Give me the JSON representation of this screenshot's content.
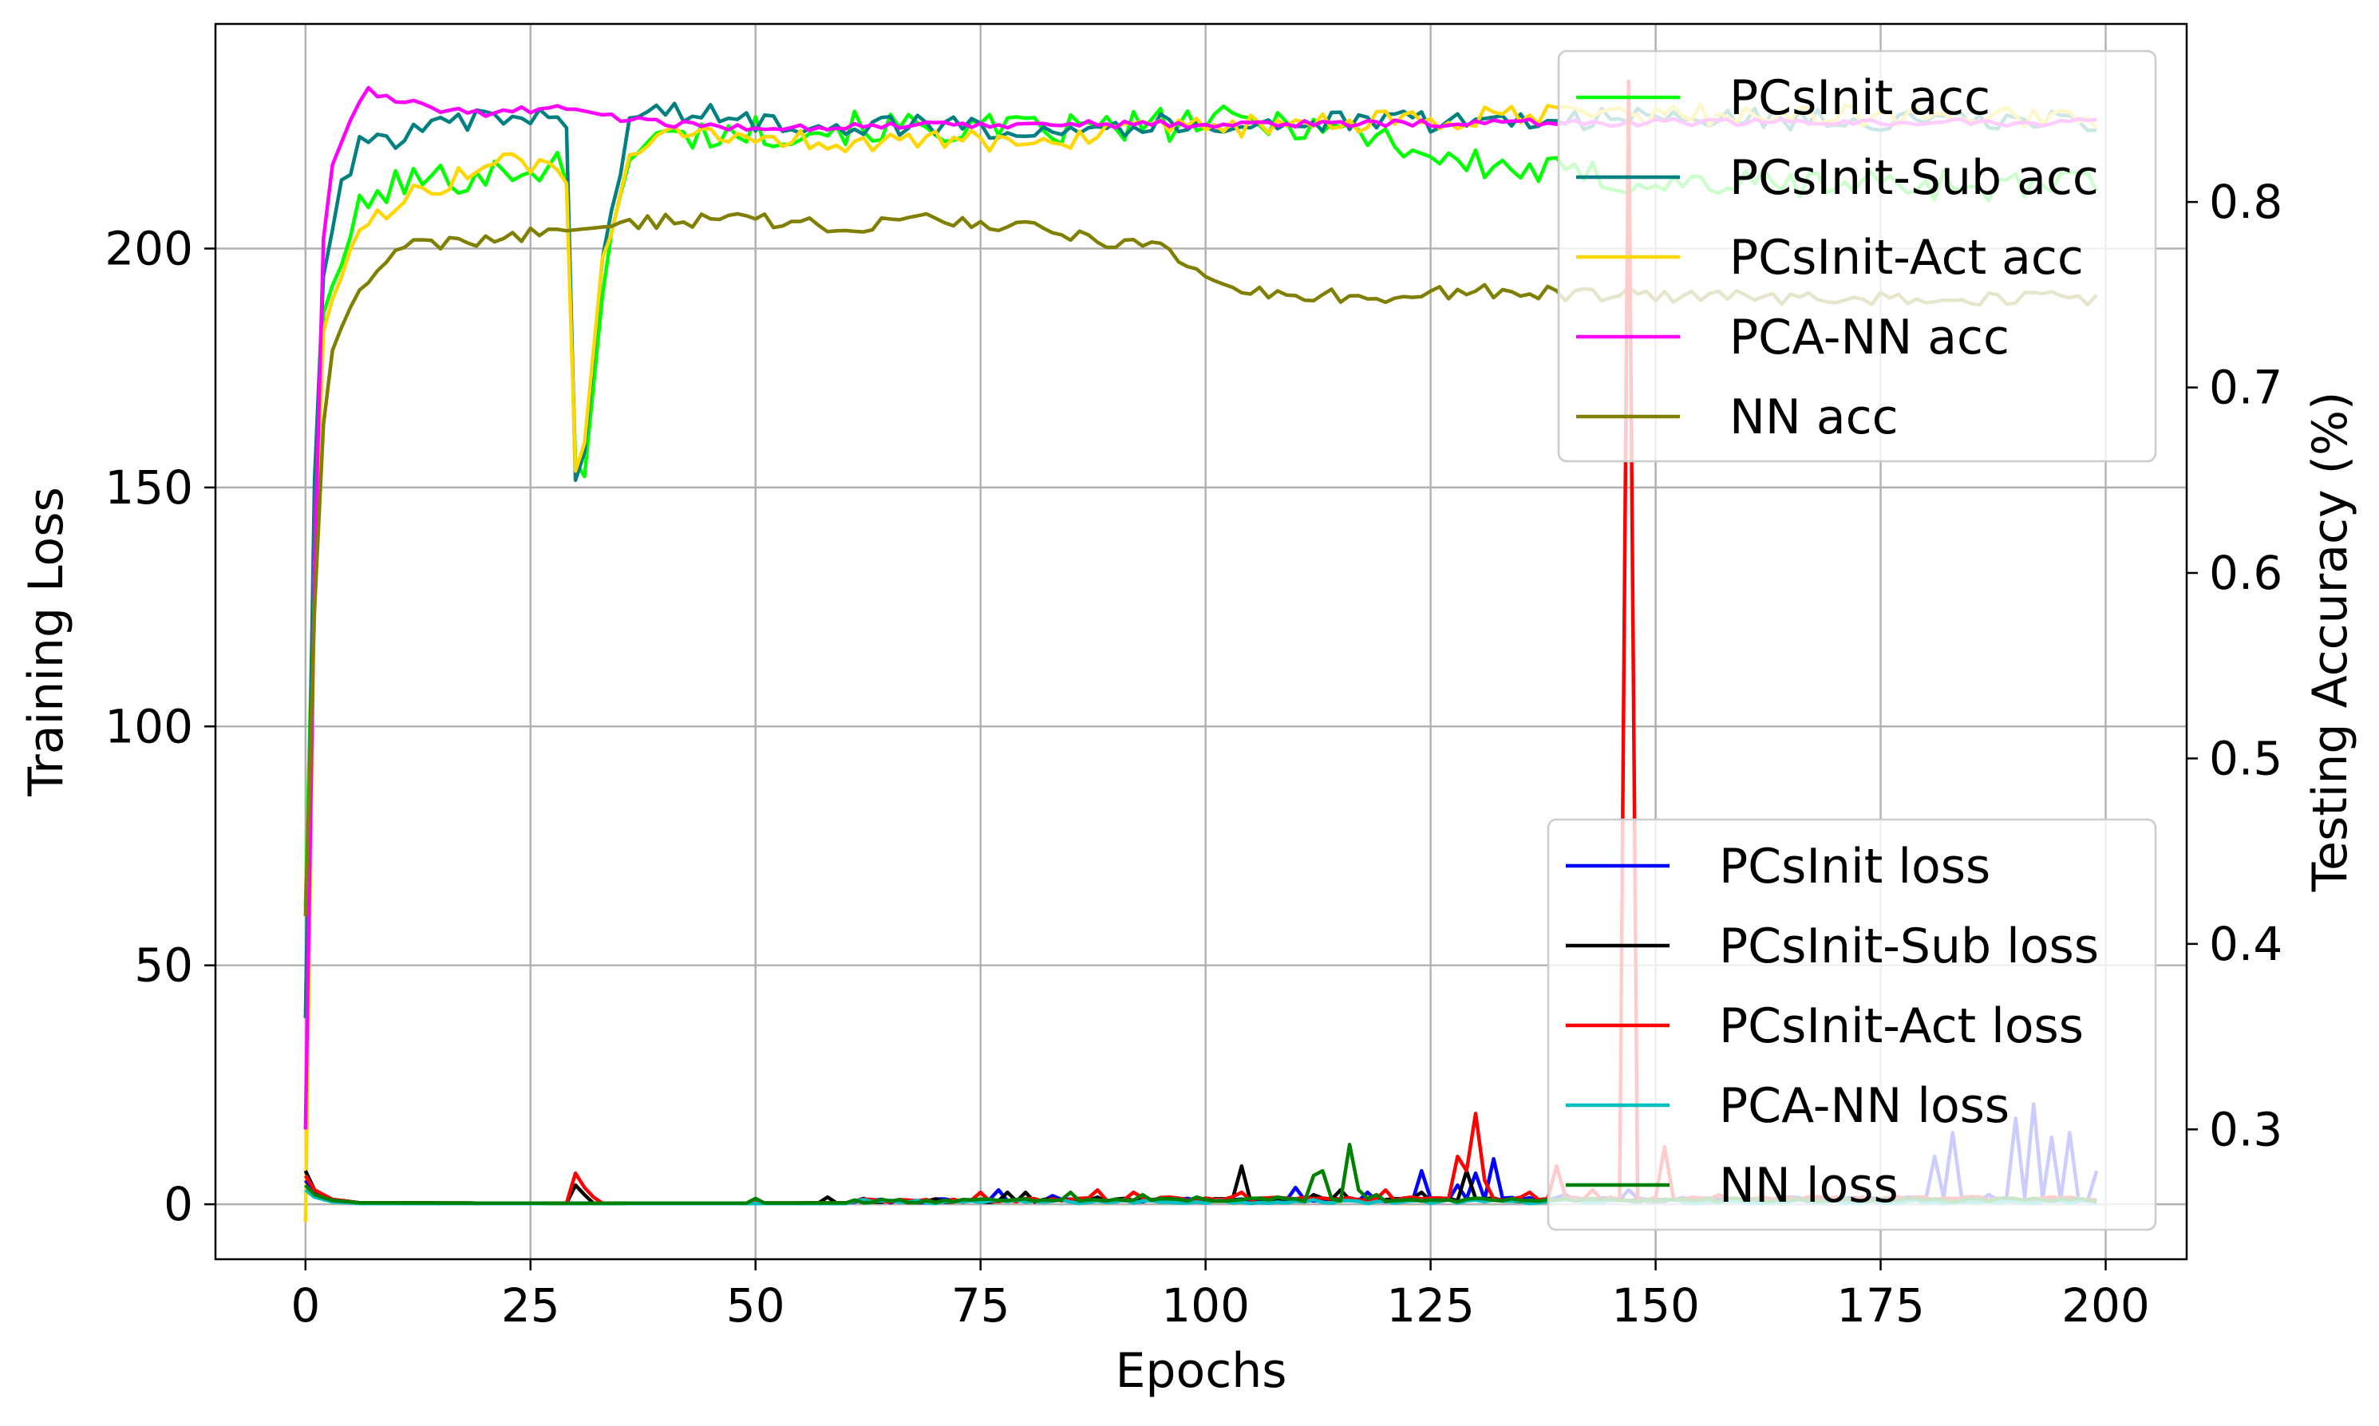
{
  "chart_data": {
    "type": "line",
    "title": "",
    "xlabel": "Epochs",
    "ylabel_left": "Training Loss",
    "ylabel_right": "Testing Accuracy (%)",
    "xlim": [
      -10,
      209
    ],
    "ylim_left": [
      -11.5,
      247
    ],
    "ylim_right": [
      0.23,
      0.896
    ],
    "xticks": [
      0,
      25,
      50,
      75,
      100,
      125,
      150,
      175,
      200
    ],
    "yticks_left": [
      0,
      50,
      100,
      150,
      200
    ],
    "yticks_right": [
      0.3,
      0.4,
      0.5,
      0.6,
      0.7,
      0.8
    ],
    "xtick_labels": [
      "0",
      "25",
      "50",
      "75",
      "100",
      "125",
      "150",
      "175",
      "200"
    ],
    "ytick_labels_left": [
      "0",
      "50",
      "100",
      "150",
      "200"
    ],
    "ytick_labels_right": [
      "0.3",
      "0.4",
      "0.5",
      "0.6",
      "0.7",
      "0.8"
    ],
    "grid": true,
    "legend_acc_placement": "upper right",
    "legend_loss_placement": "lower right",
    "accuracy_series": [
      {
        "name": "PCsInit acc",
        "color": "#00ff00",
        "keypoints": [
          [
            0,
            0.42
          ],
          [
            1,
            0.62
          ],
          [
            2,
            0.74
          ],
          [
            4,
            0.77
          ],
          [
            6,
            0.795
          ],
          [
            10,
            0.81
          ],
          [
            20,
            0.815
          ],
          [
            28,
            0.82
          ],
          [
            29,
            0.81
          ],
          [
            30,
            0.66
          ],
          [
            31,
            0.652
          ],
          [
            33,
            0.75
          ],
          [
            36,
            0.83
          ],
          [
            40,
            0.835
          ],
          [
            50,
            0.838
          ],
          [
            60,
            0.84
          ],
          [
            70,
            0.84
          ],
          [
            80,
            0.838
          ],
          [
            90,
            0.84
          ],
          [
            100,
            0.843
          ],
          [
            110,
            0.843
          ],
          [
            120,
            0.835
          ],
          [
            125,
            0.825
          ],
          [
            130,
            0.82
          ],
          [
            140,
            0.815
          ],
          [
            150,
            0.81
          ],
          [
            160,
            0.81
          ],
          [
            170,
            0.81
          ],
          [
            180,
            0.81
          ],
          [
            190,
            0.808
          ],
          [
            199,
            0.81
          ]
        ],
        "noise": 0.009
      },
      {
        "name": "PCsInit-Sub acc",
        "color": "#008080",
        "keypoints": [
          [
            0,
            0.36
          ],
          [
            1,
            0.65
          ],
          [
            2,
            0.76
          ],
          [
            4,
            0.81
          ],
          [
            6,
            0.83
          ],
          [
            10,
            0.835
          ],
          [
            20,
            0.845
          ],
          [
            28,
            0.845
          ],
          [
            29,
            0.84
          ],
          [
            30,
            0.65
          ],
          [
            31,
            0.665
          ],
          [
            33,
            0.77
          ],
          [
            36,
            0.845
          ],
          [
            40,
            0.85
          ],
          [
            50,
            0.843
          ],
          [
            60,
            0.842
          ],
          [
            80,
            0.84
          ],
          [
            100,
            0.842
          ],
          [
            120,
            0.843
          ],
          [
            140,
            0.845
          ],
          [
            160,
            0.845
          ],
          [
            180,
            0.843
          ],
          [
            199,
            0.843
          ]
        ],
        "noise": 0.006
      },
      {
        "name": "PCsInit-Act acc",
        "color": "#ffd700",
        "keypoints": [
          [
            0,
            0.25
          ],
          [
            1,
            0.6
          ],
          [
            2,
            0.73
          ],
          [
            4,
            0.765
          ],
          [
            6,
            0.78
          ],
          [
            10,
            0.8
          ],
          [
            20,
            0.82
          ],
          [
            28,
            0.82
          ],
          [
            29,
            0.81
          ],
          [
            30,
            0.655
          ],
          [
            31,
            0.67
          ],
          [
            33,
            0.77
          ],
          [
            36,
            0.82
          ],
          [
            40,
            0.835
          ],
          [
            50,
            0.835
          ],
          [
            60,
            0.832
          ],
          [
            80,
            0.833
          ],
          [
            100,
            0.84
          ],
          [
            120,
            0.843
          ],
          [
            130,
            0.845
          ],
          [
            140,
            0.847
          ],
          [
            160,
            0.847
          ],
          [
            180,
            0.846
          ],
          [
            199,
            0.846
          ]
        ],
        "noise": 0.006
      },
      {
        "name": "PCA-NN acc",
        "color": "#ff00ff",
        "keypoints": [
          [
            0,
            0.3
          ],
          [
            1,
            0.6
          ],
          [
            2,
            0.78
          ],
          [
            3,
            0.82
          ],
          [
            5,
            0.845
          ],
          [
            7,
            0.86
          ],
          [
            10,
            0.855
          ],
          [
            15,
            0.85
          ],
          [
            20,
            0.848
          ],
          [
            25,
            0.85
          ],
          [
            30,
            0.85
          ],
          [
            35,
            0.845
          ],
          [
            40,
            0.842
          ],
          [
            50,
            0.84
          ],
          [
            75,
            0.842
          ],
          [
            100,
            0.842
          ],
          [
            150,
            0.843
          ],
          [
            199,
            0.843
          ]
        ],
        "noise": 0.002
      },
      {
        "name": "NN acc",
        "color": "#808000",
        "keypoints": [
          [
            0,
            0.415
          ],
          [
            1,
            0.58
          ],
          [
            2,
            0.68
          ],
          [
            3,
            0.72
          ],
          [
            5,
            0.74
          ],
          [
            7,
            0.76
          ],
          [
            10,
            0.775
          ],
          [
            20,
            0.78
          ],
          [
            30,
            0.785
          ],
          [
            40,
            0.79
          ],
          [
            50,
            0.79
          ],
          [
            60,
            0.787
          ],
          [
            70,
            0.79
          ],
          [
            80,
            0.787
          ],
          [
            90,
            0.778
          ],
          [
            95,
            0.774
          ],
          [
            100,
            0.76
          ],
          [
            103,
            0.752
          ],
          [
            110,
            0.75
          ],
          [
            120,
            0.748
          ],
          [
            130,
            0.753
          ],
          [
            140,
            0.75
          ],
          [
            150,
            0.75
          ],
          [
            160,
            0.748
          ],
          [
            180,
            0.748
          ],
          [
            199,
            0.748
          ]
        ],
        "noise": 0.004
      }
    ],
    "loss_series": [
      {
        "name": "PCsInit loss",
        "color": "#0000ff",
        "base": [
          [
            0,
            5
          ],
          [
            1,
            2.5
          ],
          [
            3,
            0.9
          ],
          [
            6,
            0.3
          ],
          [
            30,
            0.2
          ],
          [
            70,
            0.3
          ],
          [
            100,
            0.5
          ],
          [
            150,
            0.7
          ],
          [
            199,
            0.7
          ]
        ],
        "spikes": [
          [
            77,
            3
          ],
          [
            83,
            1.8
          ],
          [
            110,
            3.5
          ],
          [
            118,
            2.5
          ],
          [
            124,
            7
          ],
          [
            128,
            4
          ],
          [
            130,
            6.5
          ],
          [
            132,
            9.5
          ],
          [
            140,
            2
          ],
          [
            147,
            3
          ],
          [
            165,
            1.5
          ],
          [
            181,
            10
          ],
          [
            183,
            15
          ],
          [
            187,
            2
          ],
          [
            190,
            18
          ],
          [
            192,
            21
          ],
          [
            194,
            14
          ],
          [
            196,
            15
          ],
          [
            199,
            7
          ]
        ]
      },
      {
        "name": "PCsInit-Sub loss",
        "color": "#000000",
        "base": [
          [
            0,
            7
          ],
          [
            1,
            3
          ],
          [
            3,
            1
          ],
          [
            6,
            0.3
          ],
          [
            30,
            0.2
          ],
          [
            70,
            0.3
          ],
          [
            100,
            0.5
          ],
          [
            199,
            0.5
          ]
        ],
        "spikes": [
          [
            30,
            4
          ],
          [
            31,
            2
          ],
          [
            58,
            1.5
          ],
          [
            62,
            1.2
          ],
          [
            78,
            2.5
          ],
          [
            80,
            2.5
          ],
          [
            88,
            1.5
          ],
          [
            104,
            8
          ],
          [
            112,
            2
          ],
          [
            115,
            3
          ],
          [
            124,
            2.5
          ],
          [
            129,
            7
          ],
          [
            145,
            1
          ]
        ]
      },
      {
        "name": "PCsInit-Act loss",
        "color": "#ff0000",
        "base": [
          [
            0,
            6
          ],
          [
            1,
            3
          ],
          [
            3,
            1
          ],
          [
            6,
            0.3
          ],
          [
            30,
            0.2
          ],
          [
            70,
            0.3
          ],
          [
            100,
            0.8
          ],
          [
            199,
            0.8
          ]
        ],
        "spikes": [
          [
            30,
            6.5
          ],
          [
            31,
            3.5
          ],
          [
            32,
            1.5
          ],
          [
            75,
            2.5
          ],
          [
            88,
            3
          ],
          [
            92,
            2.5
          ],
          [
            104,
            2.5
          ],
          [
            120,
            3
          ],
          [
            128,
            10
          ],
          [
            129,
            7
          ],
          [
            130,
            19
          ],
          [
            131,
            5
          ],
          [
            136,
            2.5
          ],
          [
            139,
            8
          ],
          [
            143,
            3
          ],
          [
            147,
            235
          ],
          [
            151,
            12
          ],
          [
            157,
            2
          ],
          [
            170,
            1.5
          ]
        ]
      },
      {
        "name": "PCA-NN loss",
        "color": "#00bfbf",
        "base": [
          [
            0,
            3
          ],
          [
            1,
            1.5
          ],
          [
            3,
            0.5
          ],
          [
            6,
            0.15
          ],
          [
            199,
            0.15
          ]
        ],
        "spikes": []
      },
      {
        "name": "NN loss",
        "color": "#008000",
        "base": [
          [
            0,
            4
          ],
          [
            1,
            2
          ],
          [
            3,
            0.8
          ],
          [
            6,
            0.3
          ],
          [
            30,
            0.2
          ],
          [
            70,
            0.3
          ],
          [
            100,
            0.5
          ],
          [
            199,
            0.5
          ]
        ],
        "spikes": [
          [
            50,
            1.2
          ],
          [
            85,
            2.5
          ],
          [
            93,
            2
          ],
          [
            99,
            1.5
          ],
          [
            108,
            1.5
          ],
          [
            112,
            6
          ],
          [
            113,
            7
          ],
          [
            116,
            12.5
          ],
          [
            117,
            3
          ],
          [
            119,
            2
          ]
        ]
      }
    ]
  }
}
